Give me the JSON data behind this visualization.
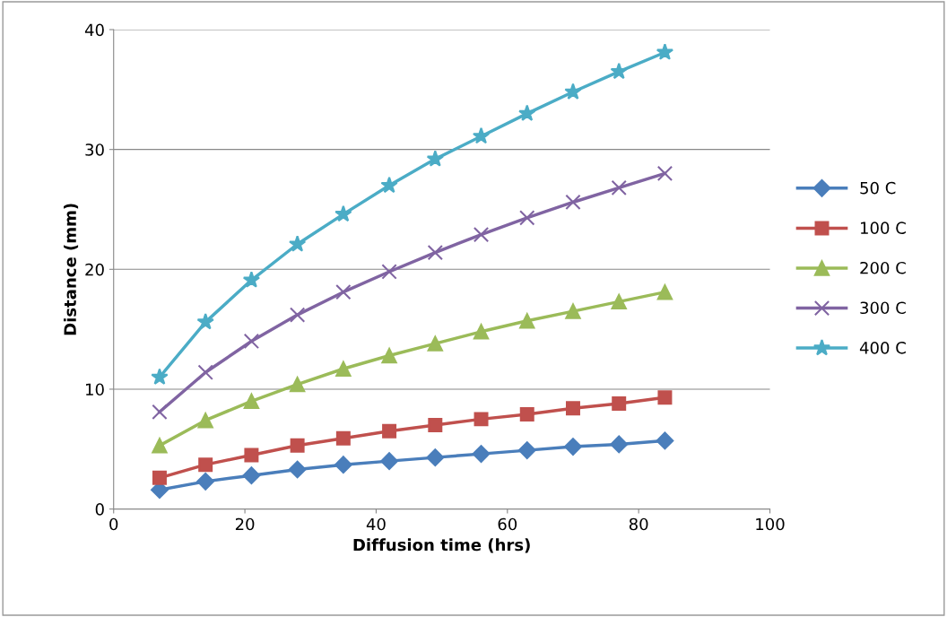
{
  "chart_data": {
    "type": "line",
    "xlabel": "Diffusion time (hrs)",
    "ylabel": "Distance (mm)",
    "x": [
      7,
      14,
      21,
      28,
      35,
      42,
      49,
      56,
      63,
      70,
      77,
      84
    ],
    "series": [
      {
        "name": "50 C",
        "color": "#4a7ebb",
        "marker": "diamond",
        "values": [
          1.6,
          2.3,
          2.8,
          3.3,
          3.7,
          4.0,
          4.3,
          4.6,
          4.9,
          5.2,
          5.4,
          5.7
        ]
      },
      {
        "name": "100 C",
        "color": "#c0504d",
        "marker": "square",
        "values": [
          2.6,
          3.7,
          4.5,
          5.3,
          5.9,
          6.5,
          7.0,
          7.5,
          7.9,
          8.4,
          8.8,
          9.3
        ]
      },
      {
        "name": "200 C",
        "color": "#9bbb59",
        "marker": "triangle",
        "values": [
          5.3,
          7.4,
          9.0,
          10.4,
          11.7,
          12.8,
          13.8,
          14.8,
          15.7,
          16.5,
          17.3,
          18.1
        ]
      },
      {
        "name": "300 C",
        "color": "#8064a2",
        "marker": "cross",
        "values": [
          8.1,
          11.4,
          14.0,
          16.2,
          18.1,
          19.8,
          21.4,
          22.9,
          24.3,
          25.6,
          26.8,
          28.0
        ]
      },
      {
        "name": "400 C",
        "color": "#4bacc6",
        "marker": "star",
        "values": [
          11.0,
          15.6,
          19.1,
          22.1,
          24.6,
          27.0,
          29.2,
          31.1,
          33.0,
          34.8,
          36.5,
          38.1
        ]
      }
    ],
    "xlim": [
      0,
      100
    ],
    "xticks": [
      0,
      20,
      40,
      60,
      80,
      100
    ],
    "ylim": [
      0,
      40
    ],
    "yticks": [
      0,
      10,
      20,
      30,
      40
    ],
    "grid": "y",
    "legend": "right",
    "line_style": "solid"
  }
}
